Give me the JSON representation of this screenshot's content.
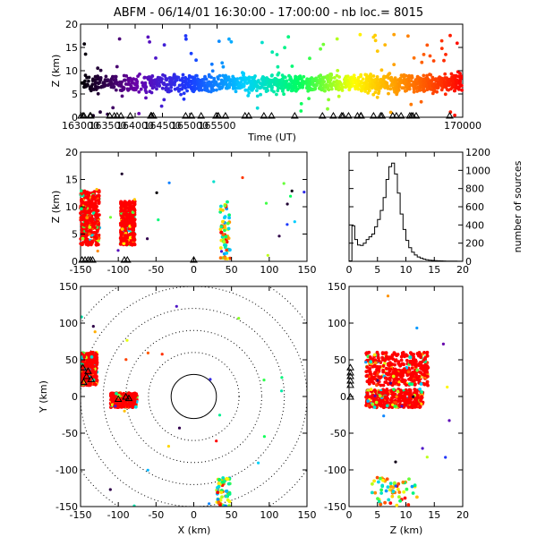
{
  "title": "ABFM - 06/14/01 16:30:00 - 17:00:00 - nb loc.=   8015",
  "chart_data": [
    {
      "id": "time-height",
      "type": "scatter",
      "xlabel": "Time (UT)",
      "ylabel": "Z (km)",
      "xlim": [
        163000,
        170000
      ],
      "ylim": [
        0,
        20
      ],
      "xticks": [
        "163000",
        "163500",
        "164000",
        "164500",
        "165000",
        "165500",
        "170000"
      ],
      "yticks": [
        "0",
        "5",
        "10",
        "15",
        "20"
      ],
      "color_encoding": "time",
      "core_height_km": [
        4,
        11
      ],
      "station_markers": "triangles at Z = 0",
      "colors": [
        "#000000",
        "#6a00a8",
        "#1a3cff",
        "#00d0ff",
        "#00ff60",
        "#ffff00",
        "#ff8000",
        "#ff0000"
      ]
    },
    {
      "id": "x-height",
      "type": "scatter",
      "xlabel": "",
      "ylabel": "Z (km)",
      "xlim": [
        -150,
        150
      ],
      "ylim": [
        0,
        20
      ],
      "xticks": [
        "-150",
        "-100",
        "-50",
        "0",
        "50",
        "100",
        "150"
      ],
      "yticks": [
        "0",
        "5",
        "10",
        "15",
        "20"
      ],
      "clusters": [
        {
          "x": [
            -150,
            -125
          ],
          "z": [
            3,
            13
          ],
          "dominant_color": "#ff0000"
        },
        {
          "x": [
            -97,
            -78
          ],
          "z": [
            3,
            11
          ],
          "dominant_color": "#ff0000"
        },
        {
          "x": [
            35,
            48
          ],
          "z": [
            0,
            11
          ],
          "dominant_color": "mixed"
        }
      ]
    },
    {
      "id": "height-histogram",
      "type": "bar",
      "xlabel": "",
      "ylabel": "number of sources",
      "xlim": [
        0,
        20
      ],
      "ylim": [
        0,
        1200
      ],
      "xticks": [
        "0",
        "5",
        "10",
        "15",
        "20"
      ],
      "yticks": [
        "0",
        "200",
        "400",
        "600",
        "800",
        "1000",
        "1200"
      ],
      "bin_width_km": 0.5,
      "bin_start_km": 0,
      "counts": [
        5,
        390,
        240,
        180,
        175,
        200,
        240,
        270,
        300,
        380,
        460,
        560,
        700,
        900,
        1040,
        1080,
        960,
        750,
        520,
        350,
        230,
        150,
        100,
        70,
        48,
        35,
        25,
        18,
        13,
        10,
        8,
        6,
        5,
        4,
        3,
        3,
        2,
        2,
        1,
        1
      ]
    },
    {
      "id": "plan-view",
      "type": "scatter",
      "xlabel": "X (km)",
      "ylabel": "Y (km)",
      "xlim": [
        -150,
        150
      ],
      "ylim": [
        -150,
        150
      ],
      "xticks": [
        "-150",
        "-100",
        "-50",
        "0",
        "50",
        "100",
        "150"
      ],
      "yticks": [
        "-150",
        "-100",
        "-50",
        "0",
        "50",
        "100",
        "150"
      ],
      "range_rings_km": [
        30,
        60,
        90,
        120,
        150,
        180
      ],
      "clusters": [
        {
          "x": [
            -150,
            -128
          ],
          "y": [
            15,
            60
          ],
          "dominant_color": "#ff0000"
        },
        {
          "x": [
            -110,
            -75
          ],
          "y": [
            -15,
            5
          ],
          "dominant_color": "#ff0000"
        },
        {
          "x": [
            30,
            48
          ],
          "y": [
            -150,
            -110
          ],
          "dominant_color": "mixed"
        }
      ]
    },
    {
      "id": "height-y",
      "type": "scatter",
      "xlabel": "Z (km)",
      "ylabel": "",
      "xlim": [
        0,
        20
      ],
      "ylim": [
        -150,
        150
      ],
      "xticks": [
        "0",
        "5",
        "10",
        "15",
        "20"
      ],
      "yticks": [
        "-150",
        "-100",
        "-50",
        "0",
        "50",
        "100",
        "150"
      ],
      "clusters": [
        {
          "z": [
            3,
            14
          ],
          "y": [
            15,
            60
          ],
          "dominant_color": "#ff0000"
        },
        {
          "z": [
            3,
            13
          ],
          "y": [
            -15,
            10
          ],
          "dominant_color": "#ff0000"
        },
        {
          "z": [
            4,
            12
          ],
          "y": [
            -150,
            -110
          ],
          "dominant_color": "mixed"
        }
      ]
    }
  ]
}
